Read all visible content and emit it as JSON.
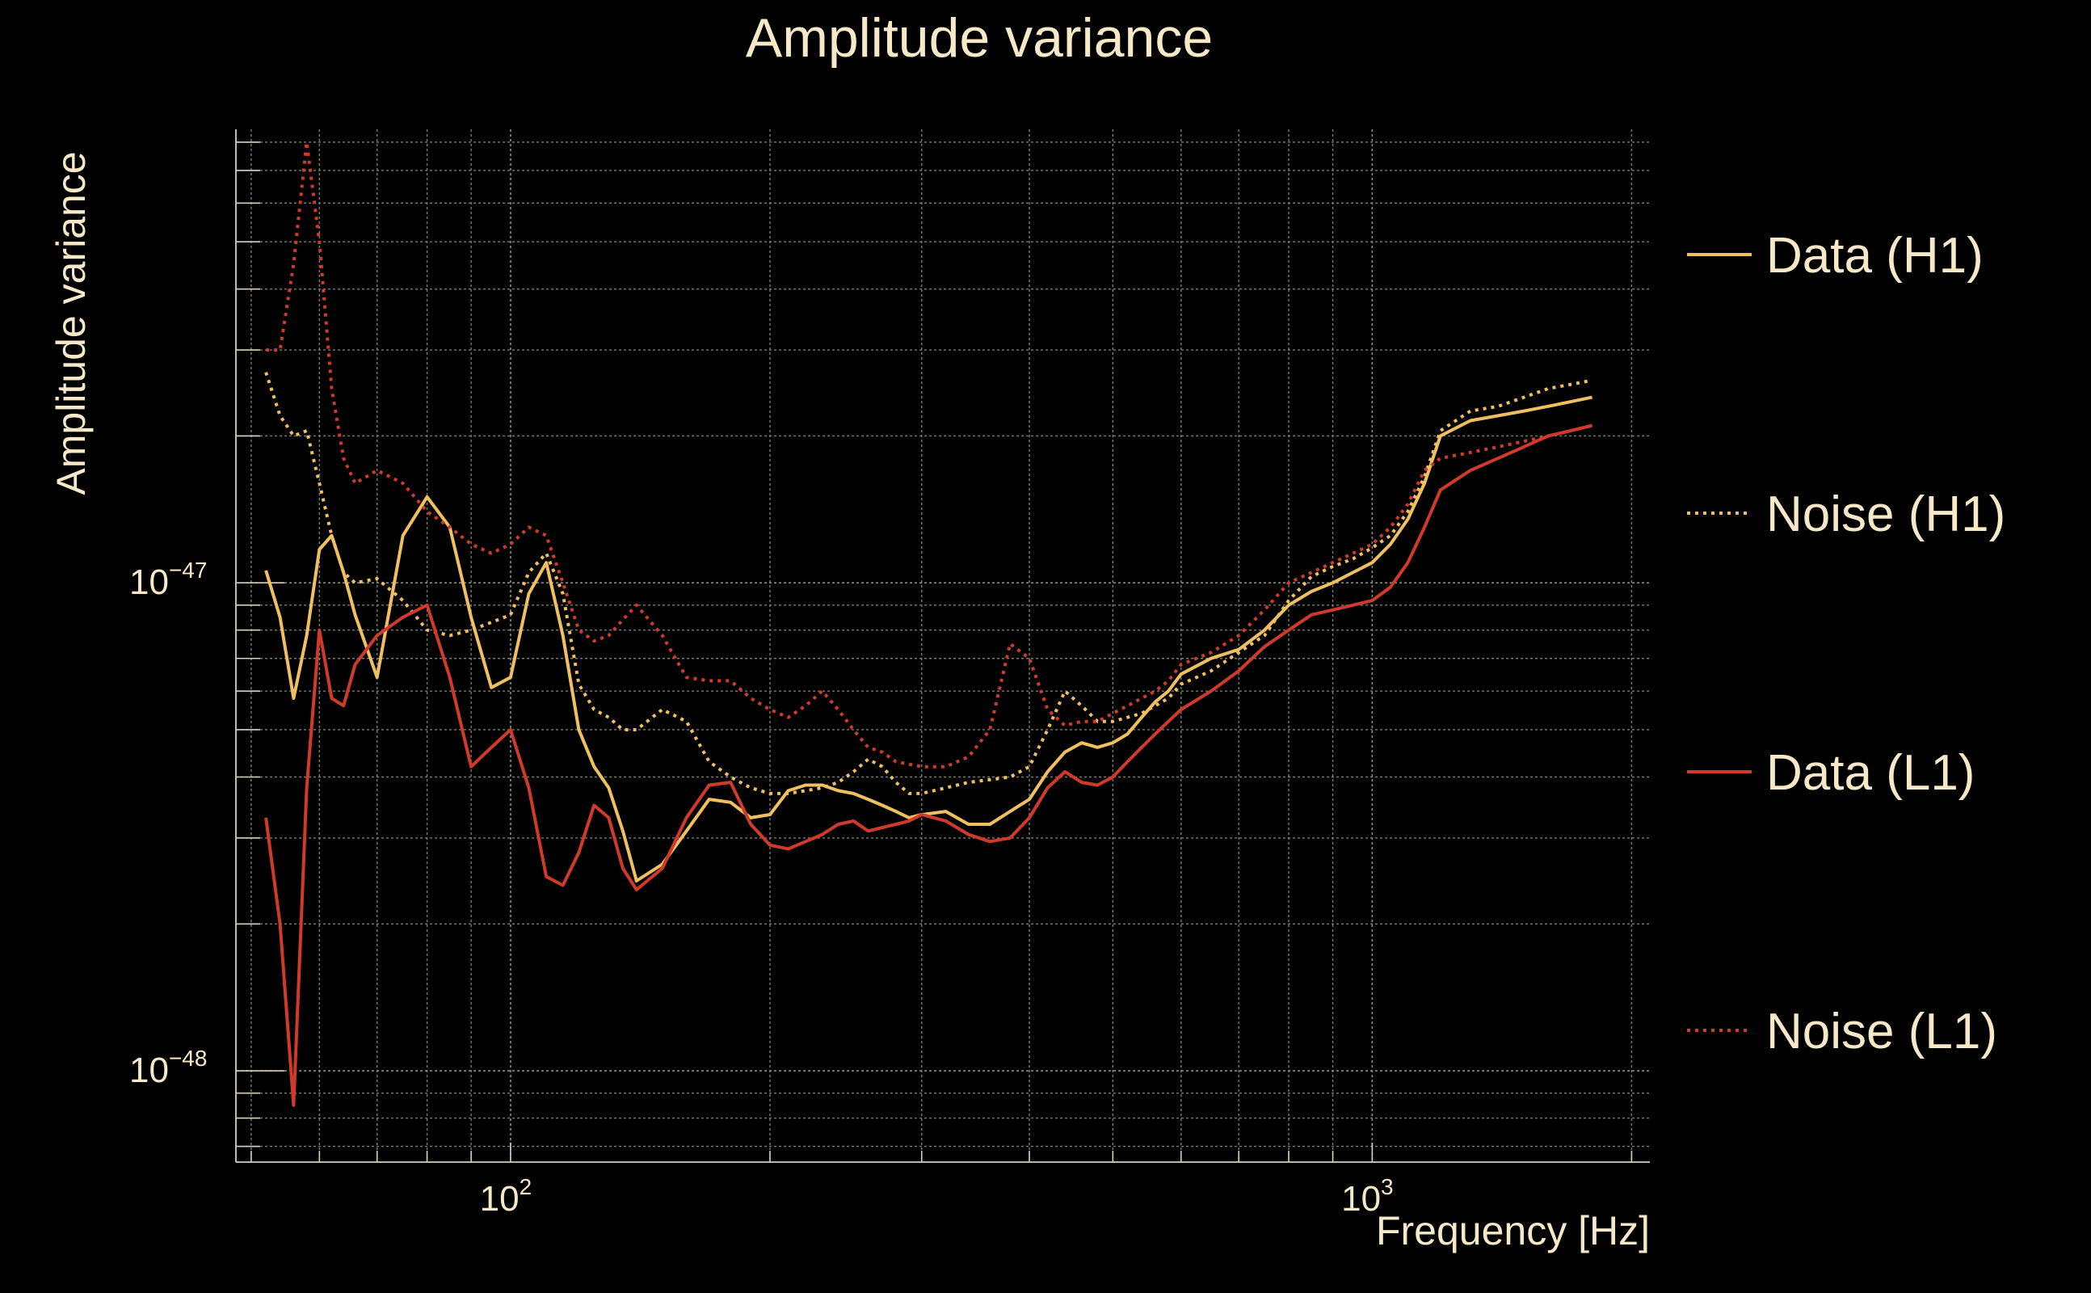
{
  "chart_data": {
    "type": "line",
    "title": "Amplitude variance",
    "xlabel": "Frequency [Hz]",
    "ylabel": "Amplitude variance",
    "xscale": "log",
    "yscale": "log",
    "xlim": [
      48,
      2100
    ],
    "ylim": [
      6.5e-49,
      8.5e-47
    ],
    "grid": true,
    "legend_position": "right",
    "x_ticks": [
      {
        "value": 100,
        "base": "10",
        "exp": "2"
      },
      {
        "value": 1000,
        "base": "10",
        "exp": "3"
      }
    ],
    "y_ticks": [
      {
        "value": 1e-47,
        "base": "10",
        "exp": "−47"
      },
      {
        "value": 1e-48,
        "base": "10",
        "exp": "−48"
      }
    ],
    "x": [
      52,
      54,
      56,
      58,
      60,
      62,
      64,
      66,
      70,
      75,
      80,
      85,
      90,
      95,
      100,
      105,
      110,
      115,
      120,
      125,
      130,
      135,
      140,
      150,
      160,
      170,
      180,
      190,
      200,
      210,
      220,
      230,
      240,
      250,
      260,
      270,
      280,
      290,
      300,
      320,
      340,
      360,
      380,
      400,
      420,
      440,
      460,
      480,
      500,
      520,
      540,
      560,
      580,
      600,
      650,
      700,
      750,
      800,
      850,
      900,
      950,
      1000,
      1050,
      1100,
      1150,
      1200,
      1300,
      1400,
      1500,
      1600,
      1700,
      1800
    ],
    "series": [
      {
        "name": "Data (H1)",
        "color": "#f0c060",
        "dash": "solid",
        "values": [
          1.06e-47,
          8.5e-48,
          5.8e-48,
          7.8e-48,
          1.17e-47,
          1.25e-47,
          1.05e-47,
          8.6e-48,
          6.4e-48,
          1.25e-47,
          1.5e-47,
          1.3e-47,
          8.5e-48,
          6.1e-48,
          6.4e-48,
          9.5e-48,
          1.1e-47,
          7.8e-48,
          5e-48,
          4.2e-48,
          3.8e-48,
          3.1e-48,
          2.45e-48,
          2.65e-48,
          3.1e-48,
          3.6e-48,
          3.55e-48,
          3.3e-48,
          3.35e-48,
          3.75e-48,
          3.85e-48,
          3.85e-48,
          3.75e-48,
          3.7e-48,
          3.6e-48,
          3.5e-48,
          3.4e-48,
          3.3e-48,
          3.35e-48,
          3.4e-48,
          3.2e-48,
          3.2e-48,
          3.4e-48,
          3.6e-48,
          4.1e-48,
          4.5e-48,
          4.7e-48,
          4.6e-48,
          4.7e-48,
          4.9e-48,
          5.3e-48,
          5.7e-48,
          6e-48,
          6.5e-48,
          7e-48,
          7.3e-48,
          8e-48,
          9e-48,
          9.6e-48,
          1e-47,
          1.05e-47,
          1.1e-47,
          1.2e-47,
          1.35e-47,
          1.6e-47,
          2e-47,
          2.15e-47,
          2.2e-47,
          2.25e-47,
          2.3e-47,
          2.35e-47,
          2.4e-47
        ]
      },
      {
        "name": "Noise (H1)",
        "color": "#f0c060",
        "dash": "dotted",
        "values": [
          2.7e-47,
          2.2e-47,
          2e-47,
          2.05e-47,
          1.6e-47,
          1.25e-47,
          1.05e-47,
          1e-47,
          1.02e-47,
          9.2e-48,
          8e-48,
          7.8e-48,
          8e-48,
          8.3e-48,
          8.6e-48,
          1.05e-47,
          1.15e-47,
          9.5e-48,
          6.2e-48,
          5.5e-48,
          5.3e-48,
          5e-48,
          5e-48,
          5.5e-48,
          5.2e-48,
          4.3e-48,
          4e-48,
          3.8e-48,
          3.7e-48,
          3.7e-48,
          3.75e-48,
          3.8e-48,
          3.9e-48,
          4.1e-48,
          4.35e-48,
          4.2e-48,
          3.9e-48,
          3.7e-48,
          3.7e-48,
          3.8e-48,
          3.9e-48,
          3.95e-48,
          4e-48,
          4.2e-48,
          5e-48,
          6e-48,
          5.6e-48,
          5.2e-48,
          5.2e-48,
          5.3e-48,
          5.4e-48,
          5.6e-48,
          5.8e-48,
          6.2e-48,
          6.6e-48,
          7.2e-48,
          7.8e-48,
          9.2e-48,
          1.03e-47,
          1.08e-47,
          1.12e-47,
          1.18e-47,
          1.25e-47,
          1.4e-47,
          1.65e-47,
          2.05e-47,
          2.25e-47,
          2.3e-47,
          2.4e-47,
          2.5e-47,
          2.55e-47,
          2.6e-47
        ]
      },
      {
        "name": "Data (L1)",
        "color": "#d03a2a",
        "dash": "solid",
        "values": [
          3.3e-48,
          2e-48,
          8.5e-49,
          3.8e-48,
          8e-48,
          5.8e-48,
          5.6e-48,
          6.8e-48,
          7.8e-48,
          8.5e-48,
          9e-48,
          6.4e-48,
          4.2e-48,
          4.6e-48,
          5e-48,
          3.8e-48,
          2.5e-48,
          2.4e-48,
          2.8e-48,
          3.5e-48,
          3.3e-48,
          2.6e-48,
          2.35e-48,
          2.6e-48,
          3.3e-48,
          3.85e-48,
          3.9e-48,
          3.2e-48,
          2.9e-48,
          2.85e-48,
          2.95e-48,
          3.05e-48,
          3.2e-48,
          3.25e-48,
          3.1e-48,
          3.15e-48,
          3.2e-48,
          3.25e-48,
          3.35e-48,
          3.25e-48,
          3.05e-48,
          2.95e-48,
          3e-48,
          3.3e-48,
          3.8e-48,
          4.1e-48,
          3.9e-48,
          3.85e-48,
          4e-48,
          4.3e-48,
          4.6e-48,
          4.9e-48,
          5.2e-48,
          5.5e-48,
          6e-48,
          6.6e-48,
          7.4e-48,
          8e-48,
          8.6e-48,
          8.8e-48,
          9e-48,
          9.2e-48,
          9.8e-48,
          1.1e-47,
          1.3e-47,
          1.55e-47,
          1.7e-47,
          1.8e-47,
          1.9e-47,
          2e-47,
          2.05e-47,
          2.1e-47
        ]
      },
      {
        "name": "Noise (L1)",
        "color": "#d03a2a",
        "dash": "dotted",
        "values": [
          3e-47,
          3e-47,
          4.5e-47,
          8e-47,
          5e-47,
          2.5e-47,
          1.8e-47,
          1.6e-47,
          1.7e-47,
          1.6e-47,
          1.4e-47,
          1.3e-47,
          1.2e-47,
          1.15e-47,
          1.2e-47,
          1.3e-47,
          1.25e-47,
          1e-47,
          8e-48,
          7.6e-48,
          7.8e-48,
          8.4e-48,
          9e-48,
          7.8e-48,
          6.4e-48,
          6.3e-48,
          6.3e-48,
          5.8e-48,
          5.5e-48,
          5.3e-48,
          5.6e-48,
          6e-48,
          5.5e-48,
          5e-48,
          4.6e-48,
          4.5e-48,
          4.3e-48,
          4.25e-48,
          4.2e-48,
          4.2e-48,
          4.4e-48,
          5e-48,
          7.5e-48,
          7e-48,
          5.5e-48,
          5.1e-48,
          5.2e-48,
          5.2e-48,
          5.4e-48,
          5.6e-48,
          5.8e-48,
          6e-48,
          6.3e-48,
          6.8e-48,
          7.2e-48,
          7.8e-48,
          8.8e-48,
          1e-47,
          1.05e-47,
          1.1e-47,
          1.15e-47,
          1.2e-47,
          1.3e-47,
          1.45e-47,
          1.7e-47,
          1.8e-47,
          1.85e-47,
          1.9e-47,
          1.95e-47,
          2e-47,
          2.05e-47,
          2.1e-47
        ]
      }
    ]
  }
}
